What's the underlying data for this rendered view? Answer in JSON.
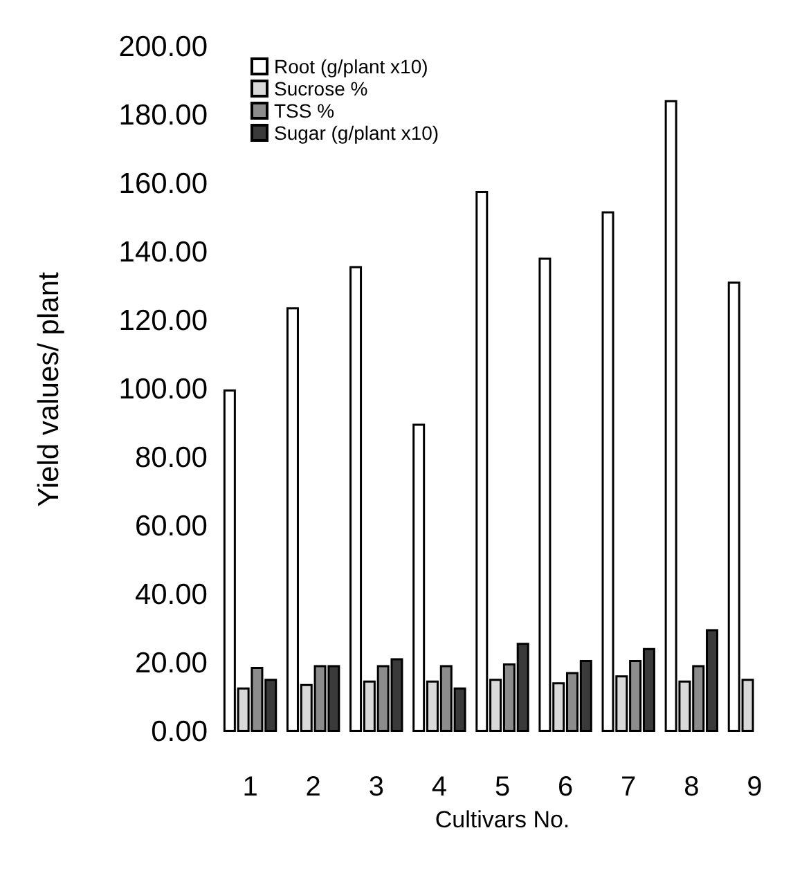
{
  "chart_data": {
    "type": "bar",
    "xlabel": "Cultivars No.",
    "ylabel": "Yield values/ plant",
    "categories": [
      "1",
      "2",
      "3",
      "4",
      "5",
      "6",
      "7",
      "8",
      "9"
    ],
    "series": [
      {
        "name": "Root (g/plant x10)",
        "color": "#ffffff",
        "values": [
          100,
          124,
          136,
          90,
          158,
          138.5,
          152,
          184.5,
          131.5
        ]
      },
      {
        "name": "Sucrose %",
        "color": "#d9d9d9",
        "values": [
          13,
          14,
          15,
          15,
          15.5,
          14.5,
          16.5,
          15,
          15.5
        ]
      },
      {
        "name": "TSS %",
        "color": "#8c8c8c",
        "values": [
          19,
          19.5,
          19.5,
          19.5,
          20,
          17.5,
          21,
          19.5,
          null
        ]
      },
      {
        "name": "Sugar (g/plant x10)",
        "color": "#3a3a3a",
        "values": [
          15.5,
          19.5,
          21.5,
          13,
          26,
          21,
          24.5,
          30,
          null
        ]
      }
    ],
    "ylim": [
      0,
      200
    ],
    "yticks": [
      {
        "value": 0,
        "label": "0.00"
      },
      {
        "value": 20,
        "label": "20.00"
      },
      {
        "value": 40,
        "label": "40.00"
      },
      {
        "value": 60,
        "label": "60.00"
      },
      {
        "value": 80,
        "label": "80.00"
      },
      {
        "value": 100,
        "label": "100.00"
      },
      {
        "value": 120,
        "label": "120.00"
      },
      {
        "value": 140,
        "label": "140.00"
      },
      {
        "value": 160,
        "label": "160.00"
      },
      {
        "value": 180,
        "label": "180.00"
      },
      {
        "value": 200,
        "label": "200.00"
      }
    ],
    "grid": false,
    "legend": "top left"
  }
}
